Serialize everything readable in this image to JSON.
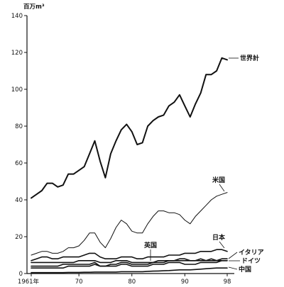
{
  "chart_data": {
    "type": "line",
    "ylabel": "百万m³",
    "ylim": [
      0,
      140
    ],
    "yticks": [
      0,
      20,
      40,
      60,
      80,
      100,
      120,
      140
    ],
    "xlim": [
      1961,
      1999
    ],
    "xticks": [
      {
        "value": 1961,
        "label": "1961年"
      },
      {
        "value": 1970,
        "label": "70"
      },
      {
        "value": 1980,
        "label": "80"
      },
      {
        "value": 1990,
        "label": "90"
      },
      {
        "value": 1998,
        "label": "98"
      }
    ],
    "grid": false,
    "x": [
      1961,
      1962,
      1963,
      1964,
      1965,
      1966,
      1967,
      1968,
      1969,
      1970,
      1971,
      1972,
      1973,
      1974,
      1975,
      1976,
      1977,
      1978,
      1979,
      1980,
      1981,
      1982,
      1983,
      1984,
      1985,
      1986,
      1987,
      1988,
      1989,
      1990,
      1991,
      1992,
      1993,
      1994,
      1995,
      1996,
      1997,
      1998
    ],
    "series": [
      {
        "name": "世界計",
        "color": "#111111",
        "width": 2.0,
        "values": [
          41,
          43,
          45,
          49,
          49,
          47,
          48,
          54,
          54,
          56,
          58,
          65,
          72,
          61,
          52,
          65,
          72,
          78,
          81,
          77,
          70,
          71,
          80,
          83,
          85,
          86,
          91,
          93,
          97,
          91,
          85,
          92,
          98,
          108,
          108,
          110,
          117,
          116
        ]
      },
      {
        "name": "米国",
        "color": "#111111",
        "width": 1.0,
        "values": [
          10,
          11,
          12,
          12,
          11,
          11,
          12,
          14,
          14,
          15,
          18,
          22,
          22,
          17,
          14,
          19,
          25,
          29,
          27,
          23,
          22,
          22,
          27,
          31,
          34,
          34,
          33,
          33,
          32,
          29,
          27,
          31,
          34,
          37,
          40,
          42,
          43,
          44
        ]
      },
      {
        "name": "日本",
        "color": "#111111",
        "width": 1.6,
        "values": [
          7,
          8,
          9,
          9,
          8,
          8,
          9,
          9,
          9,
          9,
          10,
          11,
          11,
          9,
          8,
          8,
          8,
          9,
          9,
          9,
          8,
          8,
          9,
          9,
          9,
          9,
          10,
          10,
          10,
          11,
          11,
          11,
          12,
          12,
          12,
          13,
          13,
          12
        ]
      },
      {
        "name": "英国",
        "color": "#111111",
        "width": 1.6,
        "values": [
          6,
          6,
          6,
          6,
          6,
          6,
          6,
          6,
          6,
          7,
          7,
          7,
          7,
          6,
          6,
          6,
          7,
          7,
          7,
          6,
          6,
          6,
          6,
          6,
          7,
          7,
          7,
          7,
          7,
          7,
          7,
          7,
          7,
          7,
          7,
          7,
          7,
          7
        ]
      },
      {
        "name": "イタリア",
        "color": "#111111",
        "width": 1.6,
        "values": [
          4,
          4,
          4,
          4,
          4,
          4,
          5,
          5,
          5,
          5,
          5,
          5,
          6,
          4,
          4,
          5,
          5,
          6,
          6,
          5,
          5,
          5,
          5,
          6,
          6,
          6,
          7,
          7,
          8,
          8,
          7,
          7,
          8,
          7,
          8,
          7,
          8,
          8
        ]
      },
      {
        "name": "ドイツ",
        "color": "#111111",
        "width": 1.6,
        "values": [
          3,
          3,
          3,
          3,
          3,
          3,
          3,
          4,
          4,
          4,
          4,
          4,
          5,
          4,
          4,
          4,
          4,
          5,
          5,
          4,
          4,
          4,
          4,
          5,
          5,
          5,
          6,
          6,
          6,
          5,
          5,
          5,
          6,
          6,
          6,
          6,
          7,
          7
        ]
      },
      {
        "name": "中国",
        "color": "#111111",
        "width": 1.6,
        "values": [
          0.5,
          0.5,
          0.5,
          0.5,
          0.5,
          0.5,
          0.5,
          0.6,
          0.6,
          0.6,
          0.7,
          0.7,
          0.8,
          0.8,
          0.8,
          0.8,
          0.8,
          1,
          1,
          1,
          1,
          1,
          1.2,
          1.3,
          1.4,
          1.5,
          1.6,
          1.8,
          2,
          2,
          2,
          2.2,
          2.4,
          2.6,
          2.8,
          3,
          3,
          3
        ]
      }
    ]
  }
}
